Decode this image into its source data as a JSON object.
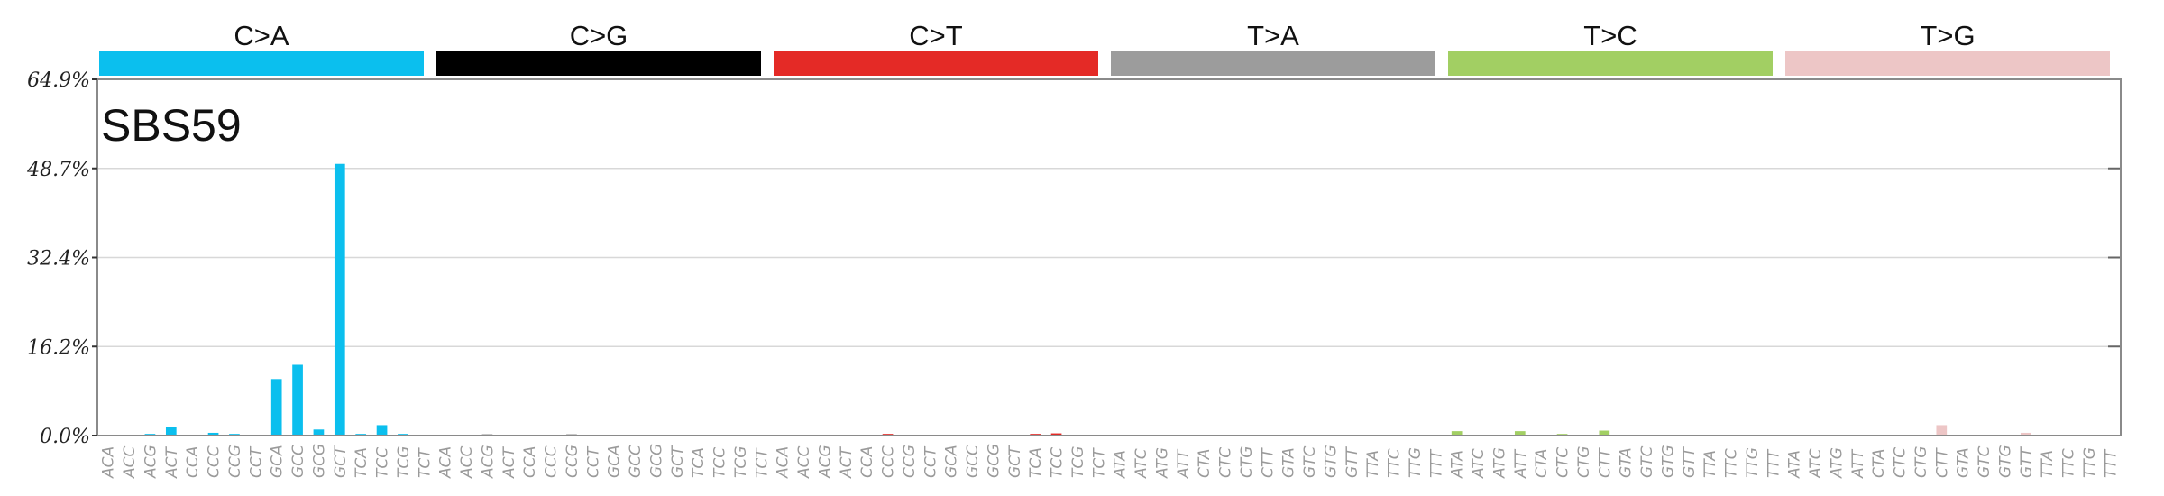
{
  "chart_data": {
    "type": "bar",
    "title": "SBS59",
    "ylim": [
      0,
      64.9
    ],
    "yticks": [
      "0.0%",
      "16.2%",
      "32.4%",
      "48.7%",
      "64.9%"
    ],
    "grid": true,
    "mutation_types": [
      {
        "label": "C>A",
        "color": "#0bbfee"
      },
      {
        "label": "C>G",
        "color": "#000000"
      },
      {
        "label": "C>T",
        "color": "#e42a26"
      },
      {
        "label": "T>A",
        "color": "#9c9c9c"
      },
      {
        "label": "T>C",
        "color": "#a2cf63"
      },
      {
        "label": "T>G",
        "color": "#edc6c6"
      }
    ],
    "categories": [
      "ACA",
      "ACC",
      "ACG",
      "ACT",
      "CCA",
      "CCC",
      "CCG",
      "CCT",
      "GCA",
      "GCC",
      "GCG",
      "GCT",
      "TCA",
      "TCC",
      "TCG",
      "TCT",
      "ACA",
      "ACC",
      "ACG",
      "ACT",
      "CCA",
      "CCC",
      "CCG",
      "CCT",
      "GCA",
      "GCC",
      "GCG",
      "GCT",
      "TCA",
      "TCC",
      "TCG",
      "TCT",
      "ACA",
      "ACC",
      "ACG",
      "ACT",
      "CCA",
      "CCC",
      "CCG",
      "CCT",
      "GCA",
      "GCC",
      "GCG",
      "GCT",
      "TCA",
      "TCC",
      "TCG",
      "TCT",
      "ATA",
      "ATC",
      "ATG",
      "ATT",
      "CTA",
      "CTC",
      "CTG",
      "CTT",
      "GTA",
      "GTC",
      "GTG",
      "GTT",
      "TTA",
      "TTC",
      "TTG",
      "TTT",
      "ATA",
      "ATC",
      "ATG",
      "ATT",
      "CTA",
      "CTC",
      "CTG",
      "CTT",
      "GTA",
      "GTC",
      "GTG",
      "GTT",
      "TTA",
      "TTC",
      "TTG",
      "TTT",
      "ATA",
      "ATC",
      "ATG",
      "ATT",
      "CTA",
      "CTC",
      "CTG",
      "CTT",
      "GTA",
      "GTC",
      "GTG",
      "GTT",
      "TTA",
      "TTC",
      "TTG",
      "TTT"
    ],
    "values": [
      0.1,
      0.1,
      0.3,
      1.5,
      0.1,
      0.5,
      0.3,
      0.1,
      10.3,
      12.9,
      1.1,
      49.5,
      0.3,
      1.9,
      0.3,
      0.1,
      0.1,
      0.05,
      0.2,
      0.05,
      0.05,
      0.05,
      0.2,
      0.05,
      0.05,
      0.05,
      0.05,
      0.05,
      0.05,
      0.05,
      0.05,
      0.05,
      0.05,
      0.05,
      0.05,
      0.05,
      0.05,
      0.3,
      0.05,
      0.05,
      0.05,
      0.05,
      0.05,
      0.05,
      0.3,
      0.4,
      0.05,
      0.05,
      0.05,
      0.05,
      0.05,
      0.05,
      0.05,
      0.05,
      0.05,
      0.05,
      0.05,
      0.05,
      0.05,
      0.05,
      0.05,
      0.05,
      0.05,
      0.05,
      0.8,
      0.05,
      0.05,
      0.8,
      0.05,
      0.3,
      0.05,
      0.9,
      0.05,
      0.05,
      0.05,
      0.05,
      0.05,
      0.05,
      0.05,
      0.05,
      0.05,
      0.05,
      0.05,
      0.05,
      0.05,
      0.05,
      0.05,
      1.9,
      0.05,
      0.05,
      0.05,
      0.5,
      0.05,
      0.05,
      0.05,
      0.05
    ]
  }
}
